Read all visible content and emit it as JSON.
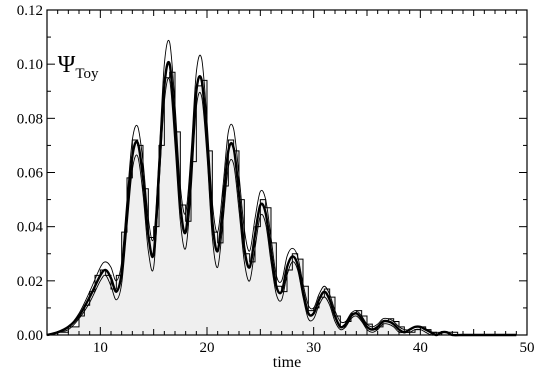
{
  "chart_data": {
    "type": "line",
    "title": "",
    "xlabel": "time",
    "ylabel": "",
    "xlim": [
      5,
      50
    ],
    "ylim": [
      0,
      0.12
    ],
    "grid": false,
    "x_ticks": [
      10,
      20,
      30,
      40,
      50
    ],
    "x_tick_labels": [
      "10",
      "20",
      "30",
      "40",
      "50"
    ],
    "y_ticks": [
      0,
      0.02,
      0.04,
      0.06,
      0.08,
      0.1,
      0.12
    ],
    "y_tick_labels": [
      "0.00",
      "0.02",
      "0.04",
      "0.06",
      "0.08",
      "0.10",
      "0.12"
    ],
    "annotation": {
      "symbol": "Ψ",
      "subscript": "Toy",
      "x": 6,
      "y": 0.1
    },
    "series": [
      {
        "style": "histogram-step-filled",
        "fill": "#efefef",
        "x": [
          5.0,
          5.5,
          6.0,
          6.5,
          7.0,
          7.5,
          8.0,
          8.5,
          9.0,
          9.5,
          10.0,
          10.5,
          11.0,
          11.5,
          12.0,
          12.5,
          13.0,
          13.5,
          14.0,
          14.5,
          15.0,
          15.5,
          16.0,
          16.5,
          17.0,
          17.5,
          18.0,
          18.5,
          19.0,
          19.5,
          20.0,
          20.5,
          21.0,
          21.5,
          22.0,
          22.5,
          23.0,
          23.5,
          24.0,
          24.5,
          25.0,
          25.5,
          26.0,
          26.5,
          27.0,
          27.5,
          28.0,
          28.5,
          29.0,
          29.5,
          30.0,
          30.5,
          31.0,
          31.5,
          32.0,
          32.5,
          33.0,
          33.5,
          34.0,
          34.5,
          35.0,
          35.5,
          36.0,
          36.5,
          37.0,
          37.5,
          38.0,
          38.5,
          39.0,
          39.5,
          40.0,
          40.5,
          41.0,
          41.5,
          42.0,
          42.5,
          43.0,
          43.5,
          44.0,
          44.5,
          45.0,
          45.5,
          46.0,
          46.5,
          47.0,
          47.5,
          48.0,
          48.5,
          49.0
        ],
        "y": [
          0.0,
          0.0,
          0.001,
          0.001,
          0.003,
          0.003,
          0.007,
          0.011,
          0.016,
          0.022,
          0.024,
          0.022,
          0.017,
          0.022,
          0.038,
          0.058,
          0.072,
          0.07,
          0.054,
          0.036,
          0.04,
          0.07,
          0.095,
          0.097,
          0.075,
          0.048,
          0.042,
          0.064,
          0.092,
          0.094,
          0.068,
          0.038,
          0.034,
          0.055,
          0.072,
          0.068,
          0.05,
          0.03,
          0.027,
          0.04,
          0.05,
          0.047,
          0.034,
          0.018,
          0.016,
          0.024,
          0.03,
          0.028,
          0.018,
          0.009,
          0.01,
          0.014,
          0.017,
          0.014,
          0.007,
          0.003,
          0.005,
          0.008,
          0.009,
          0.007,
          0.004,
          0.002,
          0.003,
          0.005,
          0.006,
          0.005,
          0.003,
          0.001,
          0.001,
          0.002,
          0.003,
          0.002,
          0.001,
          0.0,
          0.001,
          0.001,
          0.001,
          0.0,
          0.0,
          0.0,
          0.0,
          0.0,
          0.0,
          0.0,
          0.0,
          0.0,
          0.0,
          0.0,
          0.0
        ]
      },
      {
        "style": "thick-line",
        "x": [
          5,
          6,
          7,
          8,
          9,
          10,
          10.5,
          11,
          11.5,
          12,
          12.5,
          13,
          13.5,
          14,
          14.5,
          15,
          15.5,
          16,
          16.5,
          17,
          17.5,
          18,
          18.5,
          19,
          19.5,
          20,
          20.5,
          21,
          21.5,
          22,
          22.5,
          23,
          23.5,
          24,
          24.5,
          25,
          25.5,
          26,
          26.5,
          27,
          27.5,
          28,
          28.5,
          29,
          29.5,
          30,
          30.5,
          31,
          31.5,
          32,
          32.5,
          33,
          33.5,
          34,
          34.5,
          35,
          35.5,
          36,
          36.5,
          37,
          37.5,
          38,
          38.5,
          39,
          39.5,
          40,
          40.5,
          41,
          41.5,
          42,
          42.5,
          43,
          44,
          45,
          46,
          47,
          48,
          49
        ],
        "y": [
          0.0,
          0.001,
          0.003,
          0.007,
          0.014,
          0.022,
          0.024,
          0.021,
          0.016,
          0.023,
          0.045,
          0.066,
          0.071,
          0.058,
          0.037,
          0.03,
          0.06,
          0.092,
          0.1,
          0.077,
          0.048,
          0.038,
          0.06,
          0.09,
          0.094,
          0.072,
          0.042,
          0.031,
          0.048,
          0.068,
          0.069,
          0.052,
          0.032,
          0.025,
          0.037,
          0.048,
          0.045,
          0.031,
          0.018,
          0.016,
          0.025,
          0.029,
          0.026,
          0.016,
          0.008,
          0.008,
          0.013,
          0.016,
          0.013,
          0.007,
          0.003,
          0.004,
          0.007,
          0.008,
          0.006,
          0.003,
          0.002,
          0.003,
          0.005,
          0.005,
          0.004,
          0.002,
          0.001,
          0.002,
          0.003,
          0.003,
          0.002,
          0.001,
          0.0,
          0.001,
          0.001,
          0.0,
          0.0,
          0.0,
          0.0,
          0.0,
          0.0,
          0.0
        ]
      },
      {
        "style": "thin-upper",
        "x": [
          5,
          6,
          7,
          8,
          9,
          10,
          10.5,
          11,
          11.5,
          12,
          12.5,
          13,
          13.5,
          14,
          14.5,
          15,
          15.5,
          16,
          16.5,
          17,
          17.5,
          18,
          18.5,
          19,
          19.5,
          20,
          20.5,
          21,
          21.5,
          22,
          22.5,
          23,
          23.5,
          24,
          24.5,
          25,
          25.5,
          26,
          26.5,
          27,
          27.5,
          28,
          28.5,
          29,
          29.5,
          30,
          30.5,
          31,
          31.5,
          32,
          32.5,
          33,
          33.5,
          34,
          34.5,
          35,
          35.5,
          36,
          36.5,
          37,
          37.5,
          38,
          38.5,
          39,
          39.5,
          40,
          40.5,
          41,
          41.5,
          42,
          42.5,
          43,
          44,
          45,
          46,
          47,
          48,
          49
        ],
        "y": [
          0.0,
          0.001,
          0.003,
          0.008,
          0.016,
          0.025,
          0.027,
          0.025,
          0.02,
          0.027,
          0.05,
          0.072,
          0.077,
          0.064,
          0.043,
          0.036,
          0.066,
          0.1,
          0.108,
          0.085,
          0.055,
          0.045,
          0.067,
          0.097,
          0.102,
          0.079,
          0.049,
          0.038,
          0.055,
          0.075,
          0.076,
          0.059,
          0.039,
          0.031,
          0.043,
          0.053,
          0.05,
          0.036,
          0.022,
          0.02,
          0.029,
          0.032,
          0.029,
          0.019,
          0.011,
          0.01,
          0.015,
          0.018,
          0.015,
          0.009,
          0.005,
          0.005,
          0.008,
          0.009,
          0.007,
          0.004,
          0.003,
          0.004,
          0.006,
          0.006,
          0.005,
          0.003,
          0.002,
          0.002,
          0.003,
          0.003,
          0.002,
          0.001,
          0.001,
          0.001,
          0.001,
          0.0,
          0.0,
          0.0,
          0.0,
          0.0,
          0.0,
          0.0
        ]
      },
      {
        "style": "thin-lower",
        "x": [
          5,
          6,
          7,
          8,
          9,
          10,
          10.5,
          11,
          11.5,
          12,
          12.5,
          13,
          13.5,
          14,
          14.5,
          15,
          15.5,
          16,
          16.5,
          17,
          17.5,
          18,
          18.5,
          19,
          19.5,
          20,
          20.5,
          21,
          21.5,
          22,
          22.5,
          23,
          23.5,
          24,
          24.5,
          25,
          25.5,
          26,
          26.5,
          27,
          27.5,
          28,
          28.5,
          29,
          29.5,
          30,
          30.5,
          31,
          31.5,
          32,
          32.5,
          33,
          33.5,
          34,
          34.5,
          35,
          35.5,
          36,
          36.5,
          37,
          37.5,
          38,
          38.5,
          39,
          39.5,
          40,
          40.5,
          41,
          41.5,
          42,
          42.5,
          43,
          44,
          45,
          46,
          47,
          48,
          49
        ],
        "y": [
          0.0,
          0.001,
          0.002,
          0.006,
          0.012,
          0.02,
          0.022,
          0.018,
          0.013,
          0.019,
          0.04,
          0.061,
          0.066,
          0.052,
          0.031,
          0.025,
          0.055,
          0.086,
          0.094,
          0.07,
          0.042,
          0.032,
          0.053,
          0.084,
          0.088,
          0.066,
          0.036,
          0.025,
          0.042,
          0.062,
          0.063,
          0.046,
          0.027,
          0.02,
          0.032,
          0.044,
          0.041,
          0.027,
          0.015,
          0.013,
          0.022,
          0.027,
          0.024,
          0.014,
          0.006,
          0.006,
          0.011,
          0.014,
          0.011,
          0.005,
          0.002,
          0.003,
          0.006,
          0.007,
          0.005,
          0.002,
          0.001,
          0.002,
          0.004,
          0.004,
          0.003,
          0.001,
          0.001,
          0.001,
          0.002,
          0.002,
          0.001,
          0.0,
          0.0,
          0.0,
          0.0,
          0.0,
          0.0,
          0.0,
          0.0,
          0.0,
          0.0,
          0.0
        ]
      }
    ]
  }
}
